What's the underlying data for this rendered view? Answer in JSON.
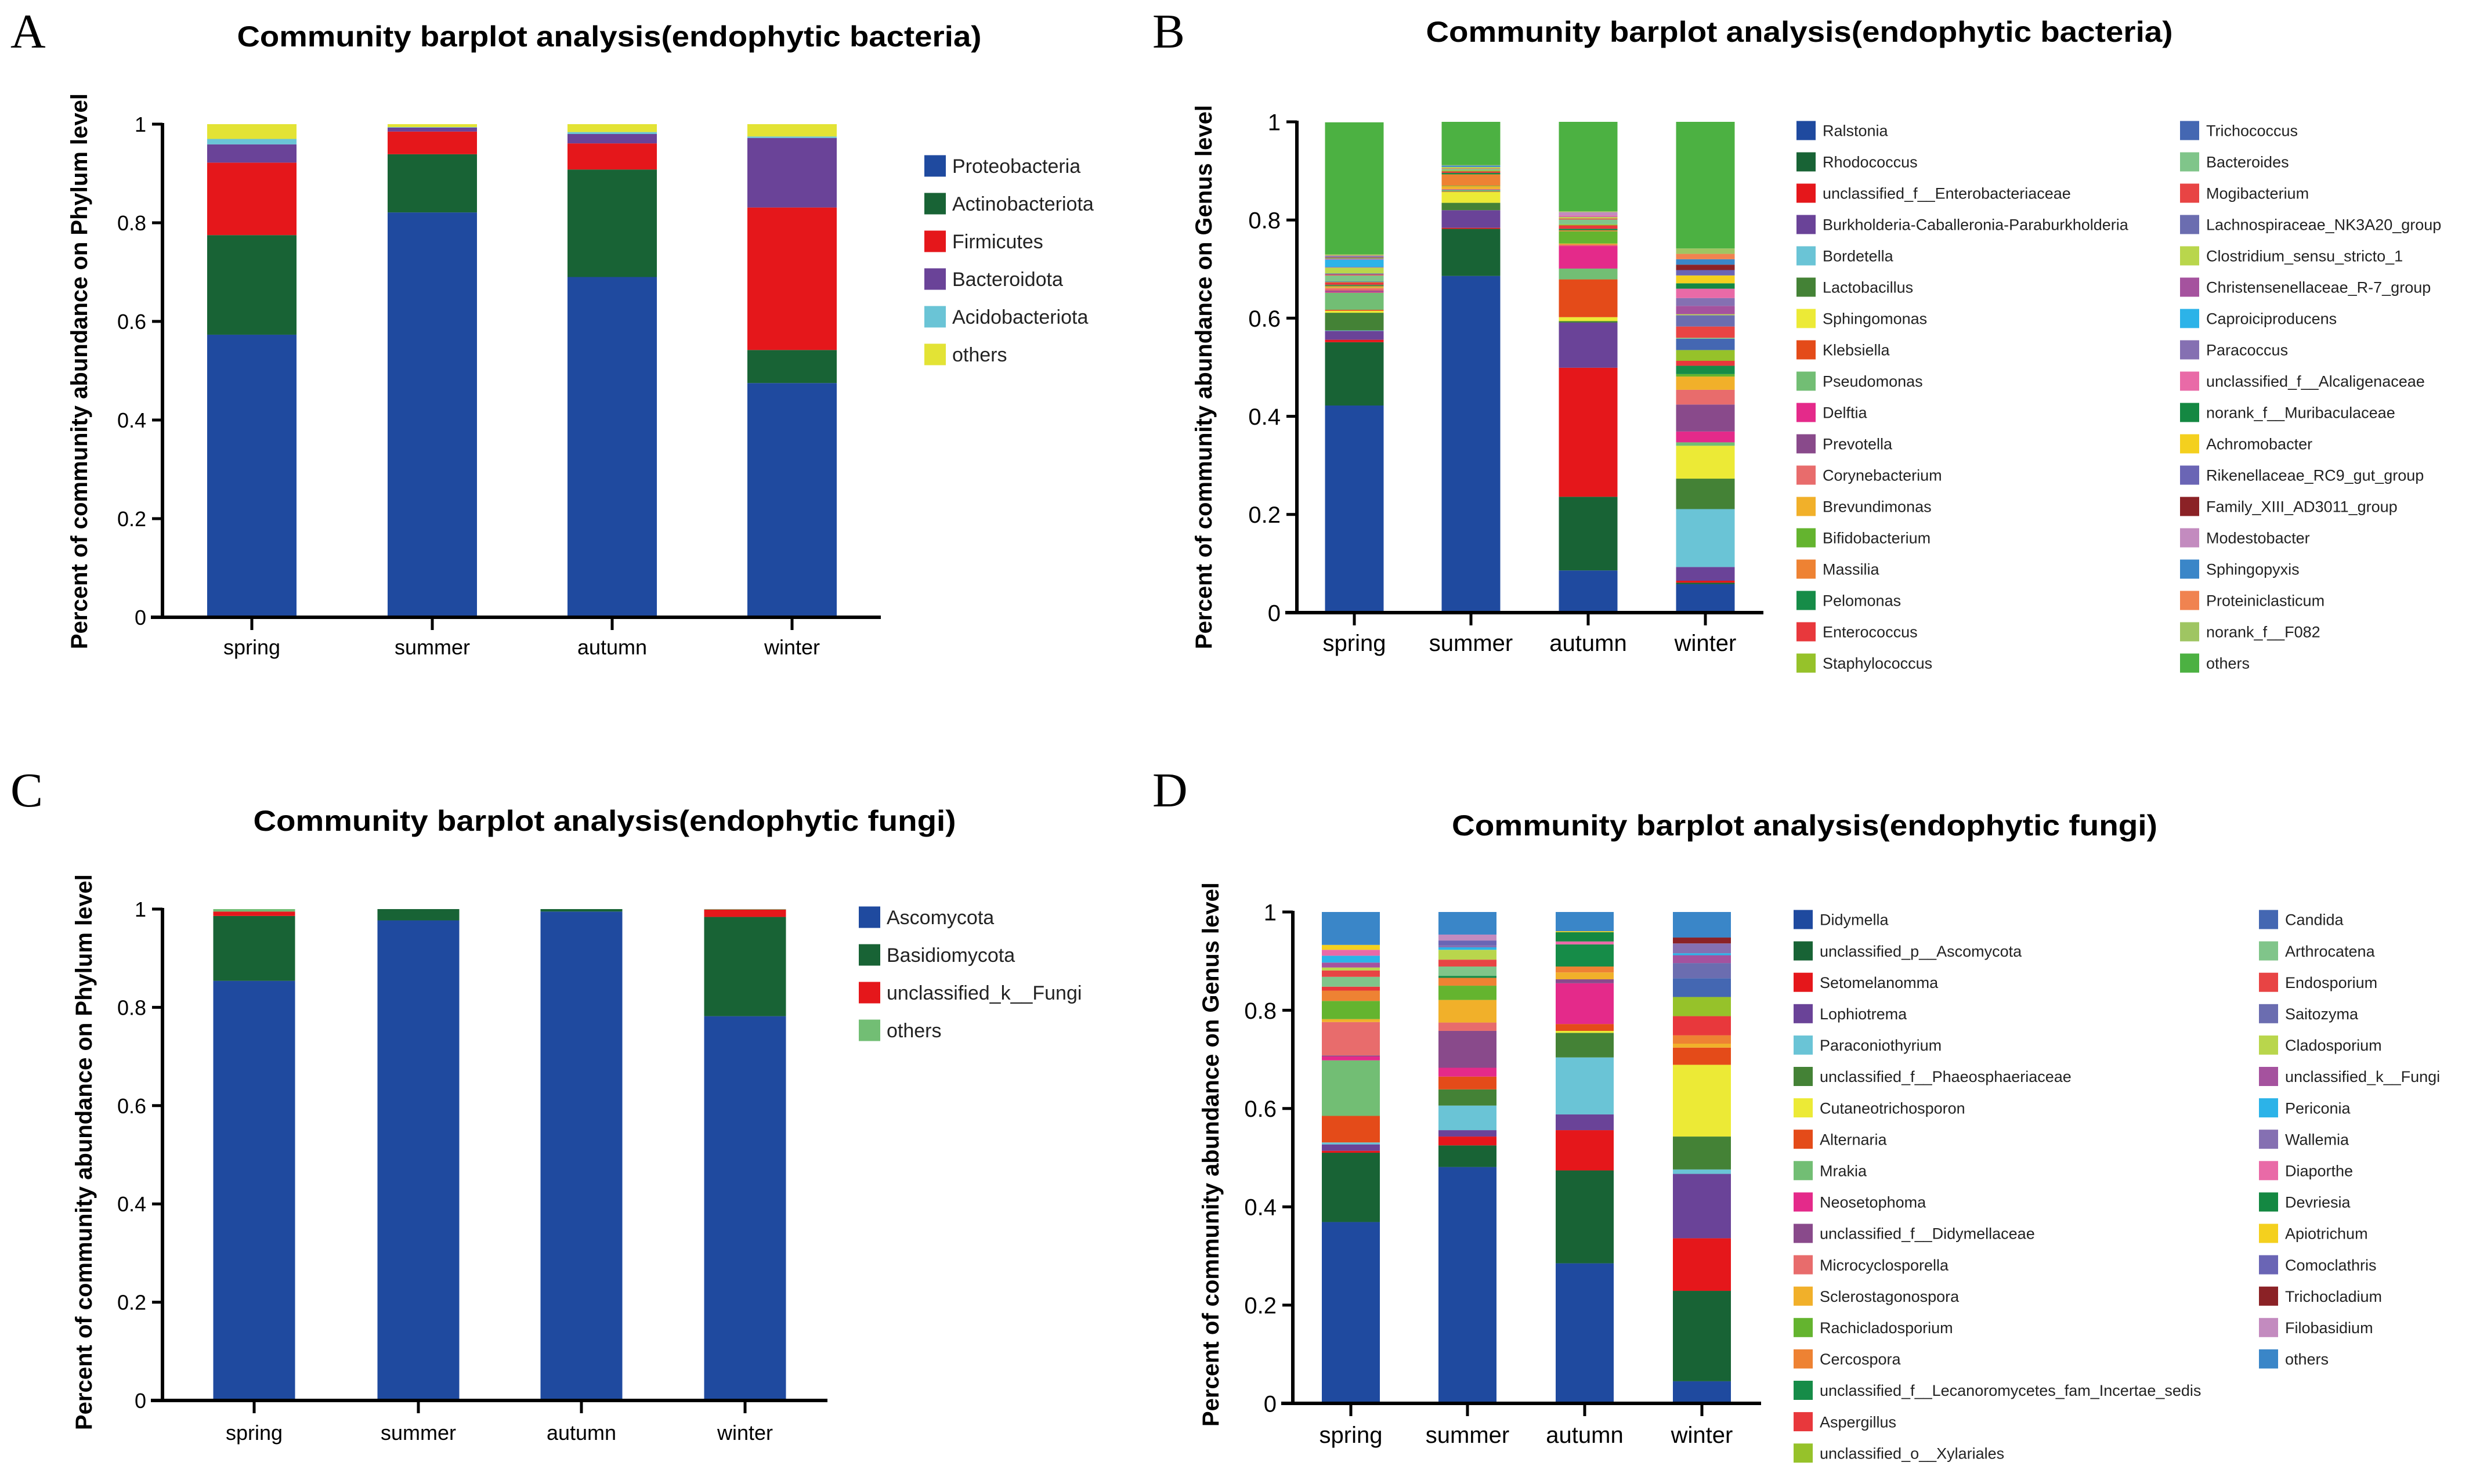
{
  "chart_data": [
    {
      "panel": "A",
      "type": "bar",
      "stacked": true,
      "title": "Community barplot analysis(endophytic bacteria)",
      "xlabel": "",
      "ylabel": "Percent of community abundance on Phylum level",
      "ylim": [
        0,
        1
      ],
      "yticks": [
        0,
        0.2,
        0.4,
        0.6,
        0.8,
        1
      ],
      "ytick_labels": [
        "0",
        "0.2",
        "0.4",
        "0.6",
        "0.8",
        "1"
      ],
      "categories": [
        "spring",
        "summer",
        "autumn",
        "winter"
      ],
      "legend_position": "right",
      "series": [
        {
          "name": "Proteobacteria",
          "color": "#1f4a9f",
          "values": [
            0.573,
            0.821,
            0.69,
            0.475
          ]
        },
        {
          "name": "Actinobacteriota",
          "color": "#186335",
          "values": [
            0.202,
            0.118,
            0.218,
            0.067
          ]
        },
        {
          "name": "Firmicutes",
          "color": "#e5171b",
          "values": [
            0.147,
            0.046,
            0.053,
            0.289
          ]
        },
        {
          "name": "Bacteroidota",
          "color": "#6a4398",
          "values": [
            0.037,
            0.008,
            0.019,
            0.141
          ]
        },
        {
          "name": "Acidobacteriota",
          "color": "#6ac4d6",
          "values": [
            0.011,
            0.001,
            0.004,
            0.003
          ]
        },
        {
          "name": "others",
          "color": "#e3e335",
          "values": [
            0.03,
            0.006,
            0.016,
            0.025
          ]
        }
      ]
    },
    {
      "panel": "B",
      "type": "bar",
      "stacked": true,
      "title": "Community barplot analysis(endophytic bacteria)",
      "xlabel": "",
      "ylabel": "Percent of community abundance on Genus level",
      "ylim": [
        0,
        1
      ],
      "yticks": [
        0,
        0.2,
        0.4,
        0.6,
        0.8,
        1
      ],
      "ytick_labels": [
        "0",
        "0.2",
        "0.4",
        "0.6",
        "0.8",
        "1"
      ],
      "categories": [
        "spring",
        "summer",
        "autumn",
        "winter"
      ],
      "legend_position": "right",
      "series": [
        {
          "name": "Ralstonia",
          "color": "#1f4a9f",
          "values": [
            0.422,
            0.686,
            0.086,
            0.058
          ]
        },
        {
          "name": "Rhodococcus",
          "color": "#186335",
          "values": [
            0.129,
            0.096,
            0.15,
            0.003
          ]
        },
        {
          "name": "unclassified_f__Enterobacteriaceae",
          "color": "#e5171b",
          "values": [
            0.005,
            0.002,
            0.263,
            0.004
          ]
        },
        {
          "name": "Burkholderia-Caballeronia-Paraburkholderia",
          "color": "#6a4398",
          "values": [
            0.018,
            0.036,
            0.092,
            0.028
          ]
        },
        {
          "name": "Bordetella",
          "color": "#6ac4d6",
          "values": [
            0.001,
            0,
            0,
            0.118
          ]
        },
        {
          "name": "Lactobacillus",
          "color": "#448236",
          "values": [
            0.036,
            0.015,
            0.003,
            0.062
          ]
        },
        {
          "name": "Sphingomonas",
          "color": "#ecea36",
          "values": [
            0.004,
            0.022,
            0.008,
            0.067
          ]
        },
        {
          "name": "Klebsiella",
          "color": "#e44b19",
          "values": [
            0.002,
            0.001,
            0.077,
            0
          ]
        },
        {
          "name": "Pseudomonas",
          "color": "#72be74",
          "values": [
            0.035,
            0.003,
            0.022,
            0.007
          ]
        },
        {
          "name": "Delftia",
          "color": "#e42a8a",
          "values": [
            0.002,
            0,
            0.046,
            0.022
          ]
        },
        {
          "name": "Prevotella",
          "color": "#894a8b",
          "values": [
            0.002,
            0.001,
            0,
            0.055
          ]
        },
        {
          "name": "Corynebacterium",
          "color": "#e86c6c",
          "values": [
            0.005,
            0.001,
            0.003,
            0.03
          ]
        },
        {
          "name": "Brevundimonas",
          "color": "#f1b02a",
          "values": [
            0.002,
            0.006,
            0.002,
            0.027
          ]
        },
        {
          "name": "Bifidobacterium",
          "color": "#64b42f",
          "values": [
            0.001,
            0.001,
            0.025,
            0.005
          ]
        },
        {
          "name": "Massilia",
          "color": "#ee8233",
          "values": [
            0.002,
            0.023,
            0.002,
            0
          ]
        },
        {
          "name": "Pelomonas",
          "color": "#168c48",
          "values": [
            0.002,
            0.003,
            0.003,
            0.017
          ]
        },
        {
          "name": "Enterococcus",
          "color": "#e8383c",
          "values": [
            0.005,
            0.003,
            0.007,
            0.01
          ]
        },
        {
          "name": "Staphylococcus",
          "color": "#96c22a",
          "values": [
            0.001,
            0.002,
            0.002,
            0.022
          ]
        },
        {
          "name": "Trichococcus",
          "color": "#4467b2",
          "values": [
            0.001,
            0,
            0,
            0.023
          ]
        },
        {
          "name": "Bacteroides",
          "color": "#80c58a",
          "values": [
            0.012,
            0.003,
            0.01,
            0.002
          ]
        },
        {
          "name": "Mogibacterium",
          "color": "#e84444",
          "values": [
            0.002,
            0.001,
            0.002,
            0.023
          ]
        },
        {
          "name": "Lachnospiraceae_NK3A20_group",
          "color": "#6b6db0",
          "values": [
            0.002,
            0,
            0,
            0.023
          ]
        },
        {
          "name": "Clostridium_sensu_stricto_1",
          "color": "#b9d64c",
          "values": [
            0.012,
            0.003,
            0.003,
            0.002
          ]
        },
        {
          "name": "Christensenellaceae_R-7_group",
          "color": "#a5529e",
          "values": [
            0.001,
            0,
            0.001,
            0.017
          ]
        },
        {
          "name": "Caproiciproducens",
          "color": "#2cb3e8",
          "values": [
            0.015,
            0,
            0,
            0
          ]
        },
        {
          "name": "Paracoccus",
          "color": "#8570b2",
          "values": [
            0.001,
            0,
            0,
            0.016
          ]
        },
        {
          "name": "unclassified_f__Alcaligenaceae",
          "color": "#e96aa7",
          "values": [
            0.001,
            0,
            0.002,
            0.019
          ]
        },
        {
          "name": "norank_f__Muribaculaceae",
          "color": "#148842",
          "values": [
            0.001,
            0,
            0,
            0.011
          ]
        },
        {
          "name": "Achromobacter",
          "color": "#f4d01e",
          "values": [
            0.001,
            0,
            0,
            0.016
          ]
        },
        {
          "name": "Rikenellaceae_RC9_gut_group",
          "color": "#6a65b5",
          "values": [
            0.001,
            0,
            0,
            0.011
          ]
        },
        {
          "name": "Family_XIII_AD3011_group",
          "color": "#8b2226",
          "values": [
            0.001,
            0,
            0,
            0.011
          ]
        },
        {
          "name": "Modestobacter",
          "color": "#c38bbf",
          "values": [
            0.001,
            0,
            0.007,
            0
          ]
        },
        {
          "name": "Sphingopyxis",
          "color": "#3a86c8",
          "values": [
            0.001,
            0.003,
            0,
            0.011
          ]
        },
        {
          "name": "Proteiniclasticum",
          "color": "#f08350",
          "values": [
            0.001,
            0,
            0,
            0.011
          ]
        },
        {
          "name": "norank_f__F082",
          "color": "#9fc562",
          "values": [
            0.002,
            0.001,
            0.002,
            0.011
          ]
        },
        {
          "name": "others",
          "color": "#4cb142",
          "values": [
            0.269,
            0.088,
            0.182,
            0.258
          ]
        }
      ]
    },
    {
      "panel": "C",
      "type": "bar",
      "stacked": true,
      "title": "Community barplot analysis(endophytic fungi)",
      "xlabel": "",
      "ylabel": "Percent of community abundance on Phylum level",
      "ylim": [
        0,
        1
      ],
      "yticks": [
        0,
        0.2,
        0.4,
        0.6,
        0.8,
        1
      ],
      "ytick_labels": [
        "0",
        "0.2",
        "0.4",
        "0.6",
        "0.8",
        "1"
      ],
      "categories": [
        "spring",
        "summer",
        "autumn",
        "winter"
      ],
      "legend_position": "right",
      "series": [
        {
          "name": "Ascomycota",
          "color": "#1f4a9f",
          "values": [
            0.854,
            0.977,
            0.995,
            0.782
          ]
        },
        {
          "name": "Basidiomycota",
          "color": "#186335",
          "values": [
            0.132,
            0.023,
            0.005,
            0.202
          ]
        },
        {
          "name": "unclassified_k__Fungi",
          "color": "#e5171b",
          "values": [
            0.009,
            0,
            0,
            0.015
          ]
        },
        {
          "name": "others",
          "color": "#72be74",
          "values": [
            0.005,
            0,
            0,
            0.001
          ]
        }
      ]
    },
    {
      "panel": "D",
      "type": "bar",
      "stacked": true,
      "title": "Community barplot analysis(endophytic fungi)",
      "xlabel": "",
      "ylabel": "Percent of community abundance on Genus level",
      "ylim": [
        0,
        1
      ],
      "yticks": [
        0,
        0.2,
        0.4,
        0.6,
        0.8,
        1
      ],
      "ytick_labels": [
        "0",
        "0.2",
        "0.4",
        "0.6",
        "0.8",
        "1"
      ],
      "categories": [
        "spring",
        "summer",
        "autumn",
        "winter"
      ],
      "legend_position": "right",
      "series": [
        {
          "name": "Didymella",
          "color": "#1f4a9f",
          "values": [
            0.369,
            0.481,
            0.285,
            0.045
          ]
        },
        {
          "name": "unclassified_p__Ascomycota",
          "color": "#186335",
          "values": [
            0.141,
            0.044,
            0.189,
            0.184
          ]
        },
        {
          "name": "Setomelanomma",
          "color": "#e5171b",
          "values": [
            0.004,
            0.018,
            0.082,
            0.107
          ]
        },
        {
          "name": "Lophiotrema",
          "color": "#6a4398",
          "values": [
            0.013,
            0.013,
            0.032,
            0.131
          ]
        },
        {
          "name": "Paraconiothyrium",
          "color": "#6ac4d6",
          "values": [
            0.004,
            0.05,
            0.116,
            0.009
          ]
        },
        {
          "name": "unclassified_f__Phaeosphaeriaceae",
          "color": "#448236",
          "values": [
            0,
            0.033,
            0.05,
            0.067
          ]
        },
        {
          "name": "Cutaneotrichosporon",
          "color": "#ecea36",
          "values": [
            0,
            0,
            0.004,
            0.146
          ]
        },
        {
          "name": "Alternaria",
          "color": "#e44b19",
          "values": [
            0.054,
            0.026,
            0.014,
            0.035
          ]
        },
        {
          "name": "Mrakia",
          "color": "#72be74",
          "values": [
            0.113,
            0,
            0,
            0
          ]
        },
        {
          "name": "Neosetophoma",
          "color": "#e42a8a",
          "values": [
            0.008,
            0.018,
            0.083,
            0
          ]
        },
        {
          "name": "unclassified_f__Didymellaceae",
          "color": "#894a8b",
          "values": [
            0.002,
            0.075,
            0.008,
            0
          ]
        },
        {
          "name": "Microcyclosporella",
          "color": "#e86c6c",
          "values": [
            0.068,
            0.017,
            0,
            0
          ]
        },
        {
          "name": "Sclerostagonospora",
          "color": "#f1b02a",
          "values": [
            0.006,
            0.046,
            0.014,
            0.008
          ]
        },
        {
          "name": "Rachicladosporium",
          "color": "#64b42f",
          "values": [
            0.037,
            0.029,
            0,
            0
          ]
        },
        {
          "name": "Cercospora",
          "color": "#ee8233",
          "values": [
            0.021,
            0.016,
            0.012,
            0.017
          ]
        },
        {
          "name": "unclassified_f__Lecanoromycetes_fam_Incertae_sedis",
          "color": "#168c48",
          "values": [
            0,
            0.004,
            0.045,
            0
          ]
        },
        {
          "name": "Aspergillus",
          "color": "#e8383c",
          "values": [
            0.008,
            0,
            0,
            0.039
          ]
        },
        {
          "name": "unclassified_o__Xylariales",
          "color": "#96c22a",
          "values": [
            0,
            0,
            0,
            0.039
          ]
        },
        {
          "name": "Candida",
          "color": "#4467b2",
          "values": [
            0,
            0,
            0,
            0.038
          ]
        },
        {
          "name": "Arthrocatena",
          "color": "#80c58a",
          "values": [
            0.02,
            0.019,
            0,
            0
          ]
        },
        {
          "name": "Endosporium",
          "color": "#e84444",
          "values": [
            0.013,
            0.014,
            0,
            0
          ]
        },
        {
          "name": "Saitozyma",
          "color": "#6b6db0",
          "values": [
            0,
            0,
            0,
            0.031
          ]
        },
        {
          "name": "Cladosporium",
          "color": "#b9d64c",
          "values": [
            0.006,
            0.02,
            0,
            0
          ]
        },
        {
          "name": "unclassified_k__Fungi",
          "color": "#a5529e",
          "values": [
            0.01,
            0,
            0,
            0.016
          ]
        },
        {
          "name": "Periconia",
          "color": "#2cb3e8",
          "values": [
            0.014,
            0.005,
            0,
            0.004
          ]
        },
        {
          "name": "Wallemia",
          "color": "#8570b2",
          "values": [
            0,
            0.004,
            0,
            0.02
          ]
        },
        {
          "name": "Diaporthe",
          "color": "#e96aa7",
          "values": [
            0.012,
            0,
            0.006,
            0
          ]
        },
        {
          "name": "Devriesia",
          "color": "#148842",
          "values": [
            0,
            0,
            0.019,
            0
          ]
        },
        {
          "name": "Apiotrichum",
          "color": "#f4d01e",
          "values": [
            0.01,
            0,
            0.002,
            0
          ]
        },
        {
          "name": "Comoclathris",
          "color": "#6a65b5",
          "values": [
            0,
            0.01,
            0,
            0
          ]
        },
        {
          "name": "Trichocladium",
          "color": "#8b2226",
          "values": [
            0,
            0,
            0,
            0.012
          ]
        },
        {
          "name": "Filobasidium",
          "color": "#c38bbf",
          "values": [
            0,
            0.012,
            0,
            0
          ]
        },
        {
          "name": "others",
          "color": "#3a86c8",
          "values": [
            0.067,
            0.046,
            0.039,
            0.052
          ]
        }
      ]
    }
  ]
}
